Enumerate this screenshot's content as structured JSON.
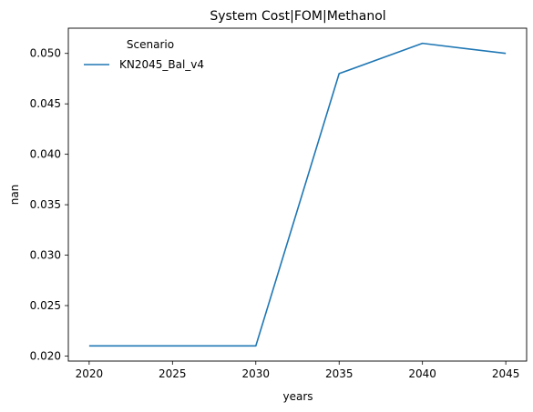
{
  "chart_data": {
    "type": "line",
    "title": "System Cost|FOM|Methanol",
    "xlabel": "years",
    "ylabel": "nan",
    "x": [
      2020,
      2025,
      2030,
      2035,
      2040,
      2045
    ],
    "xticks": [
      "2020",
      "2025",
      "2030",
      "2035",
      "2040",
      "2045"
    ],
    "yticks": [
      "0.020",
      "0.025",
      "0.030",
      "0.035",
      "0.040",
      "0.045",
      "0.050"
    ],
    "xlim": [
      2018.75,
      2046.25
    ],
    "ylim": [
      0.0195,
      0.0525
    ],
    "grid": false,
    "legend": {
      "title": "Scenario",
      "placement": "top-left"
    },
    "series": [
      {
        "name": "KN2045_Bal_v4",
        "color": "#1f77b4",
        "values": [
          0.021,
          0.021,
          0.021,
          0.048,
          0.051,
          0.05
        ]
      }
    ]
  }
}
